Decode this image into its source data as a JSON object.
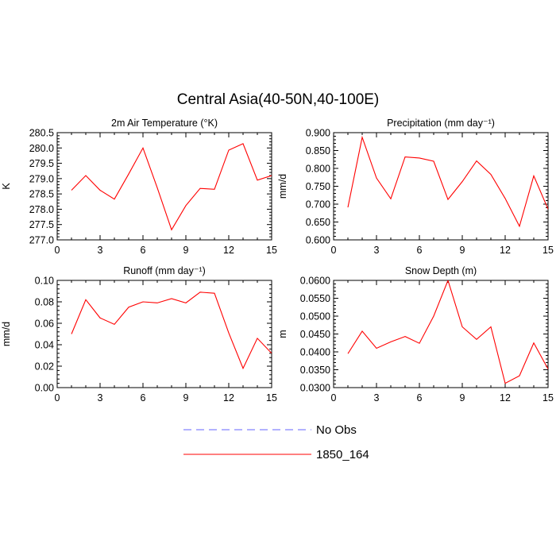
{
  "figure": {
    "title": "Central Asia(40-50N,40-100E)"
  },
  "legend": {
    "placement": "bottom-center",
    "entries": [
      {
        "label": "No Obs",
        "color": "#6666ff",
        "dashed": true
      },
      {
        "label": "1850_164",
        "color": "#ff0000",
        "dashed": false
      }
    ]
  },
  "chart_data": [
    {
      "type": "line",
      "title": "2m Air Temperature (°K)",
      "ylabel": "K",
      "xlim": [
        0,
        15
      ],
      "ylim": [
        277.0,
        280.5
      ],
      "xticks": [
        "0",
        "3",
        "6",
        "9",
        "12",
        "15"
      ],
      "yticks": [
        "277.0",
        "277.5",
        "278.0",
        "278.5",
        "279.0",
        "279.5",
        "280.0",
        "280.5"
      ],
      "grid": false,
      "x": [
        1,
        2,
        3,
        4,
        5,
        6,
        7,
        8,
        9,
        10,
        11,
        12,
        13,
        14,
        15
      ],
      "series": [
        {
          "name": "1850_164",
          "color": "#ff0000",
          "values": [
            278.62,
            279.1,
            278.62,
            278.33,
            279.15,
            280.0,
            278.7,
            277.33,
            278.12,
            278.68,
            278.65,
            279.93,
            280.14,
            278.95,
            279.1
          ]
        }
      ]
    },
    {
      "type": "line",
      "title": "Precipitation (mm day⁻¹)",
      "ylabel": "mm/d",
      "xlim": [
        0,
        15
      ],
      "ylim": [
        0.6,
        0.9
      ],
      "xticks": [
        "0",
        "3",
        "6",
        "9",
        "12",
        "15"
      ],
      "yticks": [
        "0.600",
        "0.650",
        "0.700",
        "0.750",
        "0.800",
        "0.850",
        "0.900"
      ],
      "grid": false,
      "x": [
        1,
        2,
        3,
        4,
        5,
        6,
        7,
        8,
        9,
        10,
        11,
        12,
        13,
        14,
        15
      ],
      "series": [
        {
          "name": "1850_164",
          "color": "#ff0000",
          "values": [
            0.691,
            0.887,
            0.773,
            0.715,
            0.832,
            0.829,
            0.82,
            0.713,
            0.763,
            0.821,
            0.783,
            0.716,
            0.638,
            0.779,
            0.686
          ]
        }
      ]
    },
    {
      "type": "line",
      "title": "Runoff (mm day⁻¹)",
      "ylabel": "mm/d",
      "xlim": [
        0,
        15
      ],
      "ylim": [
        0.0,
        0.1
      ],
      "xticks": [
        "0",
        "3",
        "6",
        "9",
        "12",
        "15"
      ],
      "yticks": [
        "0.00",
        "0.02",
        "0.04",
        "0.06",
        "0.08",
        "0.10"
      ],
      "grid": false,
      "x": [
        1,
        2,
        3,
        4,
        5,
        6,
        7,
        8,
        9,
        10,
        11,
        12,
        13,
        14,
        15
      ],
      "series": [
        {
          "name": "1850_164",
          "color": "#ff0000",
          "values": [
            0.05,
            0.082,
            0.065,
            0.059,
            0.075,
            0.08,
            0.079,
            0.083,
            0.079,
            0.089,
            0.088,
            0.051,
            0.018,
            0.046,
            0.032
          ]
        }
      ]
    },
    {
      "type": "line",
      "title": "Snow Depth (m)",
      "ylabel": "m",
      "xlim": [
        0,
        15
      ],
      "ylim": [
        0.03,
        0.06
      ],
      "xticks": [
        "0",
        "3",
        "6",
        "9",
        "12",
        "15"
      ],
      "yticks": [
        "0.0300",
        "0.0350",
        "0.0400",
        "0.0450",
        "0.0500",
        "0.0550",
        "0.0600"
      ],
      "grid": false,
      "x": [
        1,
        2,
        3,
        4,
        5,
        6,
        7,
        8,
        9,
        10,
        11,
        12,
        13,
        14,
        15
      ],
      "series": [
        {
          "name": "1850_164",
          "color": "#ff0000",
          "values": [
            0.0395,
            0.0458,
            0.041,
            0.0428,
            0.0443,
            0.0424,
            0.05,
            0.06,
            0.047,
            0.0435,
            0.047,
            0.0312,
            0.0333,
            0.0425,
            0.0352
          ]
        }
      ]
    }
  ]
}
